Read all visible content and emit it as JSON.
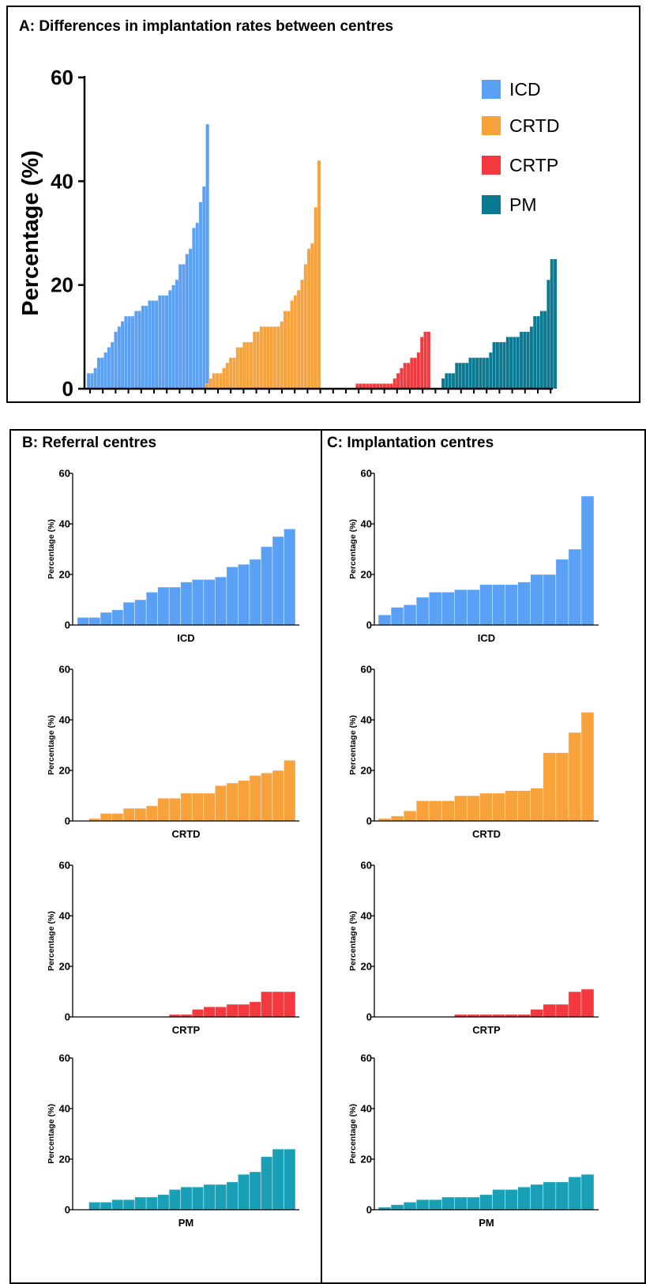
{
  "panel_a": {
    "title": "A: Differences in implantation rates between centres"
  },
  "panel_b": {
    "title": "B: Referral centres"
  },
  "panel_c": {
    "title": "C: Implantation centres"
  },
  "colors": {
    "ICD": "#5aa0f5",
    "CRTD": "#f8a23c",
    "CRTP": "#f4393e",
    "PM_A": "#0a7a92",
    "PM_small": "#1aa0b6"
  },
  "chart_data": [
    {
      "id": "A",
      "type": "bar",
      "title": "A: Differences in implantation rates between centres",
      "ylabel": "Percentage (%)",
      "xlabel": "",
      "ylim": [
        0,
        60
      ],
      "yticks": [
        "0",
        "20",
        "40",
        "60"
      ],
      "grid": false,
      "legend_position": "top-right",
      "series": [
        {
          "name": "ICD",
          "values": [
            3,
            3,
            4,
            6,
            6,
            7,
            8,
            9,
            11,
            12,
            13,
            14,
            14,
            14,
            15,
            15,
            16,
            16,
            17,
            17,
            17,
            18,
            18,
            18,
            19,
            20,
            21,
            24,
            24,
            26,
            27,
            31,
            32,
            36,
            39,
            51
          ]
        },
        {
          "name": "CRTD",
          "values": [
            1,
            2,
            3,
            3,
            3,
            4,
            5,
            6,
            6,
            8,
            8,
            9,
            9,
            9,
            11,
            11,
            12,
            12,
            12,
            12,
            12,
            12,
            13,
            15,
            15,
            17,
            18,
            19,
            21,
            24,
            27,
            28,
            35,
            44
          ]
        },
        {
          "name": "CRTP",
          "values": [
            0,
            0,
            0,
            0,
            0,
            0,
            0,
            0,
            1,
            1,
            1,
            1,
            1,
            1,
            1,
            1,
            1,
            1,
            1,
            2,
            3,
            4,
            5,
            5,
            6,
            6,
            7,
            10,
            11,
            11
          ]
        },
        {
          "name": "PM",
          "values": [
            2,
            3,
            3,
            3,
            5,
            5,
            5,
            5,
            6,
            6,
            6,
            6,
            6,
            6,
            7,
            9,
            9,
            9,
            9,
            10,
            10,
            10,
            10,
            11,
            11,
            11,
            12,
            14,
            14,
            15,
            15,
            21,
            25,
            25
          ]
        }
      ]
    },
    {
      "id": "B-ICD",
      "type": "bar",
      "xlabel": "ICD",
      "ylabel": "Percentage (%)",
      "ylim": [
        0,
        60
      ],
      "yticks": [
        "0",
        "20",
        "40",
        "60"
      ],
      "color_key": "ICD",
      "values": [
        3,
        3,
        5,
        6,
        9,
        10,
        13,
        15,
        15,
        17,
        18,
        18,
        19,
        23,
        24,
        26,
        31,
        35,
        38
      ]
    },
    {
      "id": "B-CRTD",
      "type": "bar",
      "xlabel": "CRTD",
      "ylabel": "Percentage (%)",
      "ylim": [
        0,
        60
      ],
      "yticks": [
        "0",
        "20",
        "40",
        "60"
      ],
      "color_key": "CRTD",
      "values": [
        0,
        1,
        3,
        3,
        5,
        5,
        6,
        9,
        9,
        11,
        11,
        11,
        14,
        15,
        16,
        18,
        19,
        20,
        24
      ]
    },
    {
      "id": "B-CRTP",
      "type": "bar",
      "xlabel": "CRTP",
      "ylabel": "Percentage (%)",
      "ylim": [
        0,
        60
      ],
      "yticks": [
        "0",
        "20",
        "40",
        "60"
      ],
      "color_key": "CRTP",
      "values": [
        0,
        0,
        0,
        0,
        0,
        0,
        0,
        0,
        1,
        1,
        3,
        4,
        4,
        5,
        5,
        6,
        10,
        10,
        10
      ]
    },
    {
      "id": "B-PM",
      "type": "bar",
      "xlabel": "PM",
      "ylabel": "Percentage (%)",
      "ylim": [
        0,
        60
      ],
      "yticks": [
        "0",
        "20",
        "40",
        "60"
      ],
      "color_key": "PM_small",
      "values": [
        0,
        3,
        3,
        4,
        4,
        5,
        5,
        6,
        8,
        9,
        9,
        10,
        10,
        11,
        14,
        15,
        21,
        24,
        24
      ]
    },
    {
      "id": "C-ICD",
      "type": "bar",
      "xlabel": "ICD",
      "ylabel": "Percentage (%)",
      "ylim": [
        0,
        60
      ],
      "yticks": [
        "0",
        "20",
        "40",
        "60"
      ],
      "color_key": "ICD",
      "values": [
        4,
        7,
        8,
        11,
        13,
        13,
        14,
        14,
        16,
        16,
        16,
        17,
        20,
        20,
        26,
        30,
        51
      ]
    },
    {
      "id": "C-CRTD",
      "type": "bar",
      "xlabel": "CRTD",
      "ylabel": "Percentage (%)",
      "ylim": [
        0,
        60
      ],
      "yticks": [
        "0",
        "20",
        "40",
        "60"
      ],
      "color_key": "CRTD",
      "values": [
        1,
        2,
        4,
        8,
        8,
        8,
        10,
        10,
        11,
        11,
        12,
        12,
        13,
        27,
        27,
        35,
        43
      ]
    },
    {
      "id": "C-CRTP",
      "type": "bar",
      "xlabel": "CRTP",
      "ylabel": "Percentage (%)",
      "ylim": [
        0,
        60
      ],
      "yticks": [
        "0",
        "20",
        "40",
        "60"
      ],
      "color_key": "CRTP",
      "values": [
        0,
        0,
        0,
        0,
        0,
        0,
        1,
        1,
        1,
        1,
        1,
        1,
        3,
        5,
        5,
        10,
        11
      ]
    },
    {
      "id": "C-PM",
      "type": "bar",
      "xlabel": "PM",
      "ylabel": "Percentage (%)",
      "ylim": [
        0,
        60
      ],
      "yticks": [
        "0",
        "20",
        "40",
        "60"
      ],
      "color_key": "PM_small",
      "values": [
        1,
        2,
        3,
        4,
        4,
        5,
        5,
        5,
        6,
        8,
        8,
        9,
        10,
        11,
        11,
        13,
        14
      ]
    }
  ]
}
